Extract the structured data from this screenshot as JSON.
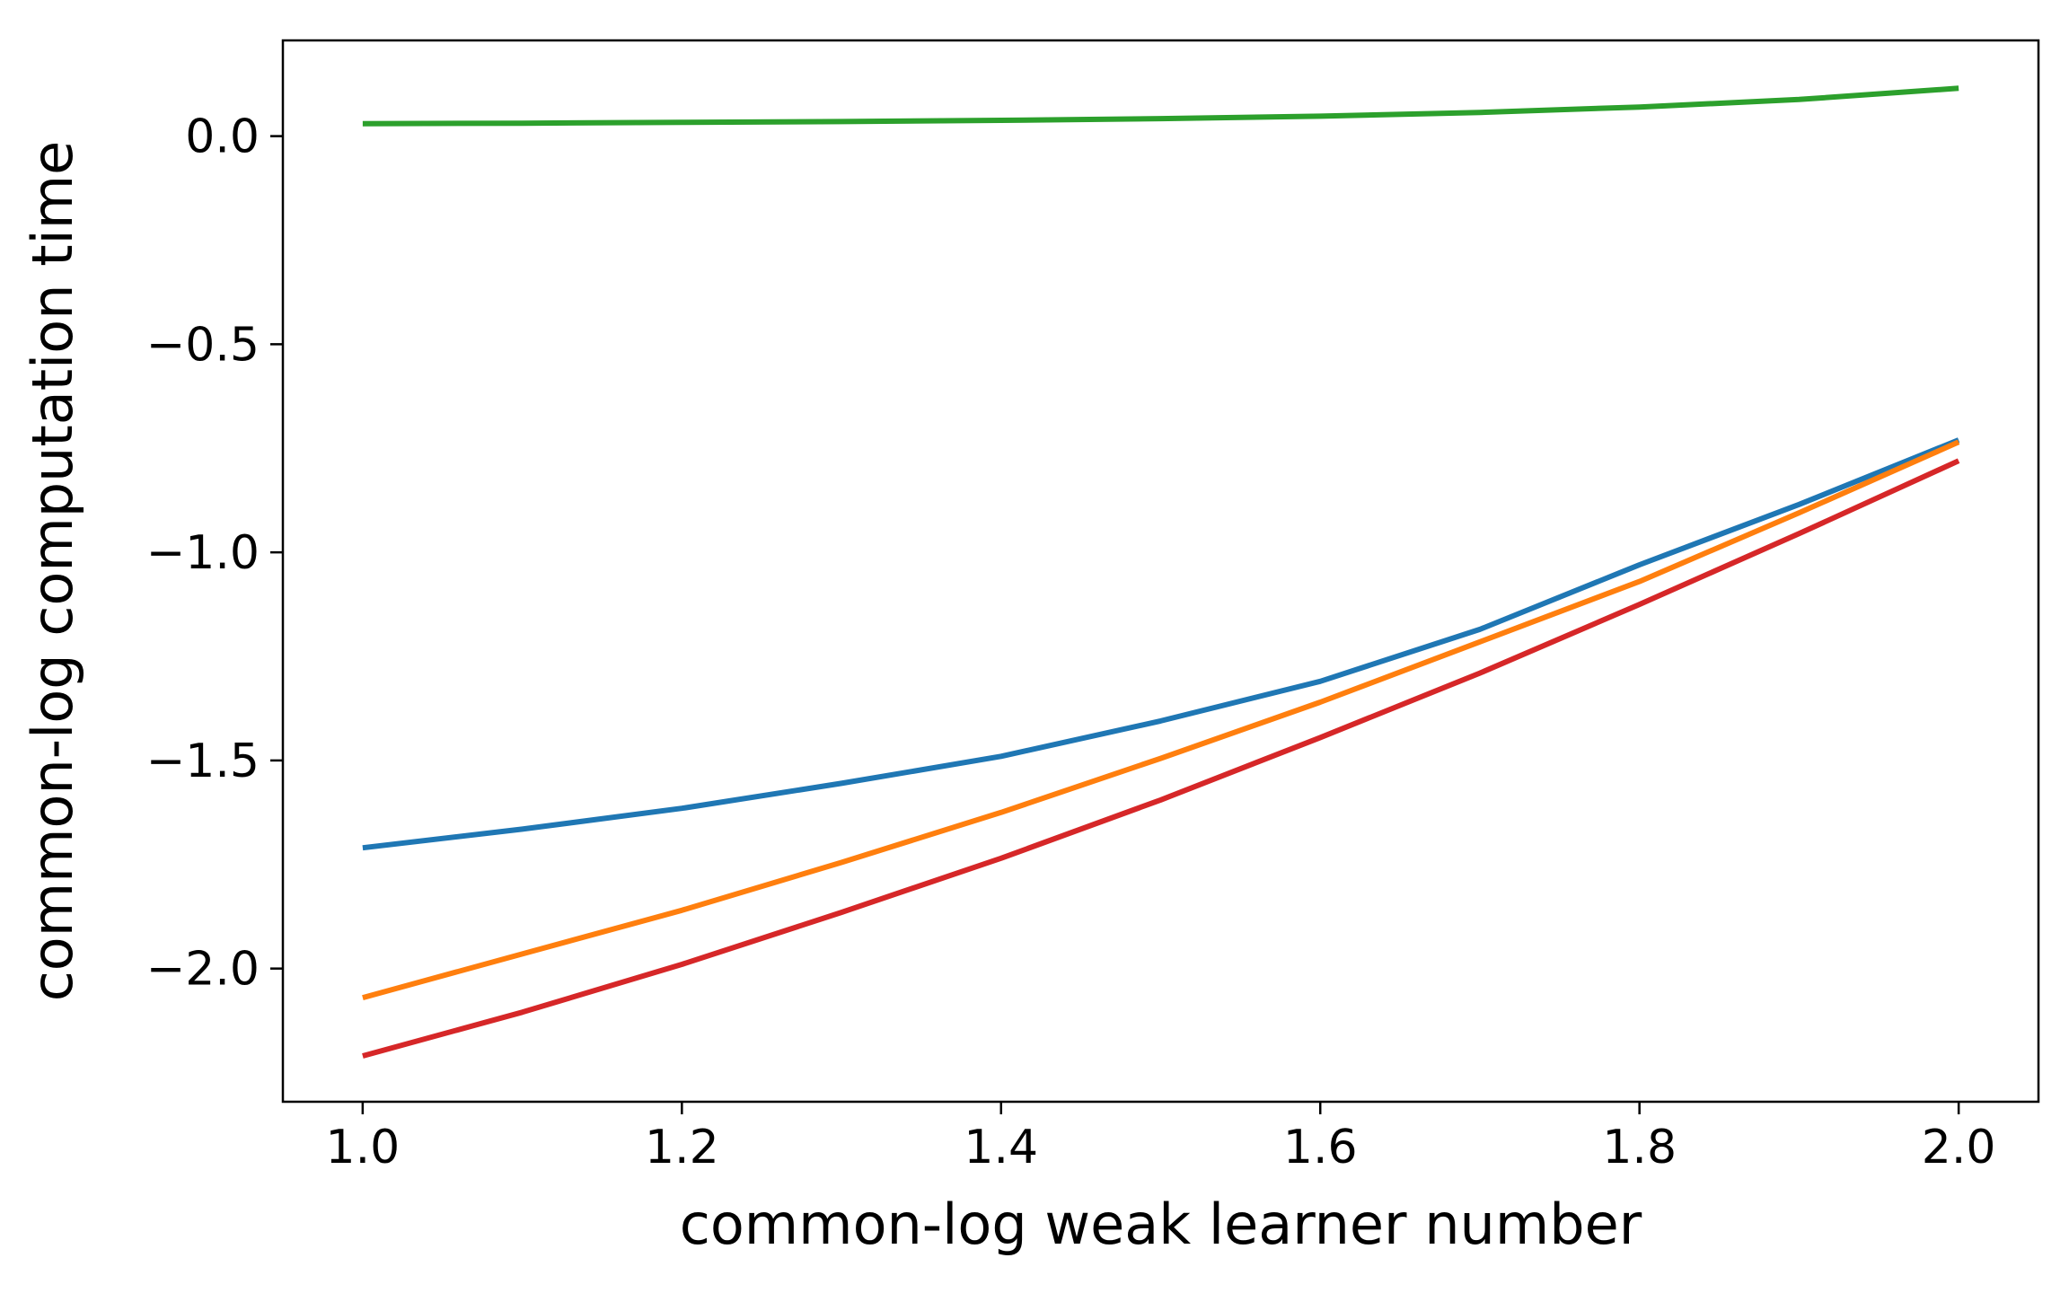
{
  "chart_data": {
    "type": "line",
    "title": "",
    "xlabel": "common-log weak learner number",
    "ylabel": "common-log computation time",
    "xlim": [
      0.95,
      2.05
    ],
    "ylim": [
      -2.32,
      0.23
    ],
    "x_ticks": [
      {
        "value": 1.0,
        "label": "1.0"
      },
      {
        "value": 1.2,
        "label": "1.2"
      },
      {
        "value": 1.4,
        "label": "1.4"
      },
      {
        "value": 1.6,
        "label": "1.6"
      },
      {
        "value": 1.8,
        "label": "1.8"
      },
      {
        "value": 2.0,
        "label": "2.0"
      }
    ],
    "y_ticks": [
      {
        "value": 0.0,
        "label": "0.0"
      },
      {
        "value": -0.5,
        "label": "−0.5"
      },
      {
        "value": -1.0,
        "label": "−1.0"
      },
      {
        "value": -1.5,
        "label": "−1.5"
      },
      {
        "value": -2.0,
        "label": "−2.0"
      }
    ],
    "grid": false,
    "legend": "none",
    "x": [
      1.0,
      1.1,
      1.2,
      1.3,
      1.4,
      1.5,
      1.6,
      1.7,
      1.8,
      1.9,
      2.0
    ],
    "series": [
      {
        "color": "#1f77b4",
        "values": [
          -1.71,
          -1.665,
          -1.615,
          -1.555,
          -1.49,
          -1.405,
          -1.31,
          -1.185,
          -1.03,
          -0.885,
          -0.73
        ]
      },
      {
        "color": "#ff7f0e",
        "values": [
          -2.07,
          -1.965,
          -1.86,
          -1.745,
          -1.625,
          -1.495,
          -1.36,
          -1.215,
          -1.07,
          -0.905,
          -0.735
        ]
      },
      {
        "color": "#2ca02c",
        "values": [
          0.03,
          0.031,
          0.033,
          0.035,
          0.038,
          0.042,
          0.048,
          0.057,
          0.07,
          0.088,
          0.115
        ]
      },
      {
        "color": "#d62728",
        "values": [
          -2.21,
          -2.105,
          -1.99,
          -1.865,
          -1.735,
          -1.595,
          -1.445,
          -1.29,
          -1.125,
          -0.955,
          -0.78
        ]
      }
    ]
  }
}
